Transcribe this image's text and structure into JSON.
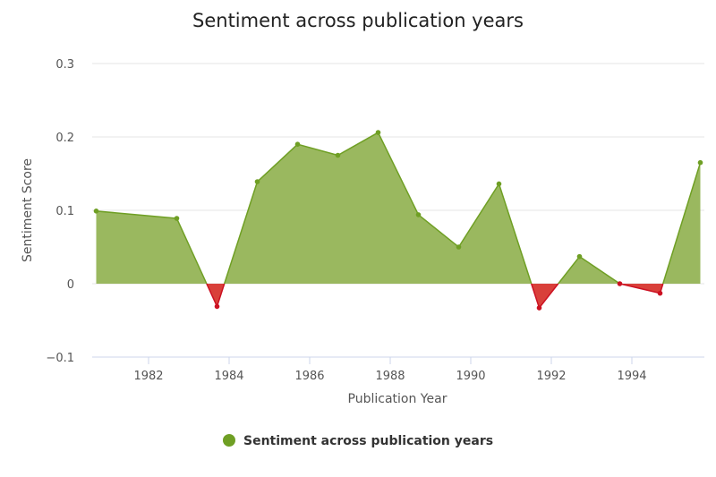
{
  "chart_data": {
    "type": "area",
    "title": "Sentiment across publication years",
    "xlabel": "Publication Year",
    "ylabel": "Sentiment Score",
    "xlim": [
      1980.6,
      1995.8
    ],
    "ylim": [
      -0.1,
      0.3
    ],
    "x_ticks": [
      1982,
      1984,
      1986,
      1988,
      1990,
      1992,
      1994
    ],
    "y_ticks": [
      -0.1,
      0,
      0.1,
      0.2,
      0.3
    ],
    "y_tick_labels": [
      "−0.1",
      "0",
      "0.1",
      "0.2",
      "0.3"
    ],
    "grid": true,
    "legend_position": "bottom",
    "series": [
      {
        "name": "Sentiment across publication years",
        "x": [
          1980.7,
          1982.7,
          1983.7,
          1984.7,
          1985.7,
          1986.7,
          1987.7,
          1988.7,
          1989.7,
          1990.7,
          1991.7,
          1992.7,
          1993.7,
          1994.7,
          1995.7
        ],
        "values": [
          0.099,
          0.089,
          -0.031,
          0.139,
          0.19,
          0.175,
          0.206,
          0.094,
          0.05,
          0.136,
          -0.033,
          0.037,
          0.0,
          -0.013,
          0.165
        ]
      }
    ],
    "colors": {
      "positive_fill": "#9ab85f",
      "positive_line": "#6f9f24",
      "negative_fill": "#d9403a",
      "negative_line": "#cc1122",
      "grid": "#e6e6e6",
      "axis": "#ccd6eb"
    }
  }
}
